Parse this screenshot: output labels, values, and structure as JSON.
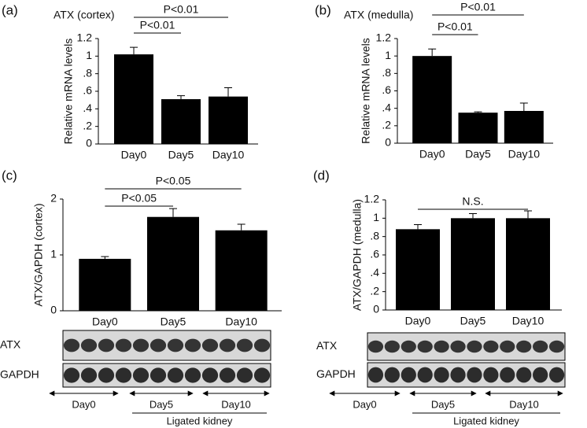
{
  "chart_data": [
    {
      "type": "bar",
      "panel": "(a)",
      "title": "ATX (cortex)",
      "ylabel": "Relative mRNA levels",
      "categories": [
        "Day0",
        "Day5",
        "Day10"
      ],
      "values": [
        1.02,
        0.51,
        0.54
      ],
      "errors": [
        0.08,
        0.04,
        0.1
      ],
      "color": "#000000",
      "ylim": [
        0,
        1.2
      ],
      "yticks": [
        0,
        {
          "value": 0.2,
          "label": ".2"
        },
        {
          "value": 0.4,
          "label": ".4"
        },
        {
          "value": 0.6,
          "label": ".6"
        },
        {
          "value": 0.8,
          "label": ".8"
        },
        1,
        1.2
      ],
      "annotations": [
        {
          "text": "P<0.01",
          "span": [
            0,
            1
          ]
        },
        {
          "text": "P<0.01",
          "span": [
            0,
            2
          ]
        }
      ]
    },
    {
      "type": "bar",
      "panel": "(b)",
      "title": "ATX (medulla)",
      "ylabel": "Relative mRNA levels",
      "categories": [
        "Day0",
        "Day5",
        "Day10"
      ],
      "values": [
        1.0,
        0.35,
        0.37
      ],
      "errors": [
        0.08,
        0.01,
        0.09
      ],
      "color": "#000000",
      "ylim": [
        0,
        1.2
      ],
      "yticks": [
        0,
        {
          "value": 0.2,
          "label": ".2"
        },
        {
          "value": 0.4,
          "label": ".4"
        },
        {
          "value": 0.6,
          "label": ".6"
        },
        {
          "value": 0.8,
          "label": ".8"
        },
        1,
        1.2
      ],
      "annotations": [
        {
          "text": "P<0.01",
          "span": [
            0,
            1
          ]
        },
        {
          "text": "P<0.01",
          "span": [
            0,
            2
          ]
        }
      ]
    },
    {
      "type": "bar",
      "panel": "(c)",
      "ylabel": "ATX/GAPDH (cortex)",
      "categories": [
        "Day0",
        "Day5",
        "Day10"
      ],
      "values": [
        0.93,
        1.68,
        1.44
      ],
      "errors": [
        0.04,
        0.15,
        0.11
      ],
      "color": "#000000",
      "ylim": [
        0,
        2
      ],
      "yticks": [
        0,
        1,
        2
      ],
      "annotations": [
        {
          "text": "P<0.05",
          "span": [
            0,
            1
          ]
        },
        {
          "text": "P<0.05",
          "span": [
            0,
            2
          ]
        }
      ],
      "blot": {
        "rows": [
          "ATX",
          "GAPDH"
        ],
        "groups": [
          "Day0",
          "Day5",
          "Day10"
        ],
        "footer": "Ligated kidney"
      }
    },
    {
      "type": "bar",
      "panel": "(d)",
      "ylabel": "ATX/GAPDH (medulla)",
      "categories": [
        "Day0",
        "Day5",
        "Day10"
      ],
      "values": [
        0.88,
        1.0,
        1.0
      ],
      "errors": [
        0.05,
        0.05,
        0.08
      ],
      "color": "#000000",
      "ylim": [
        0,
        1.2
      ],
      "yticks": [
        0,
        {
          "value": 0.2,
          "label": ".2"
        },
        {
          "value": 0.4,
          "label": ".4"
        },
        {
          "value": 0.6,
          "label": ".6"
        },
        {
          "value": 0.8,
          "label": ".8"
        },
        1,
        1.2
      ],
      "annotations": [
        {
          "text": "N.S.",
          "span": [
            0,
            2
          ]
        }
      ],
      "blot": {
        "rows": [
          "ATX",
          "GAPDH"
        ],
        "groups": [
          "Day0",
          "Day5",
          "Day10"
        ],
        "footer": "Ligated kidney"
      }
    }
  ]
}
